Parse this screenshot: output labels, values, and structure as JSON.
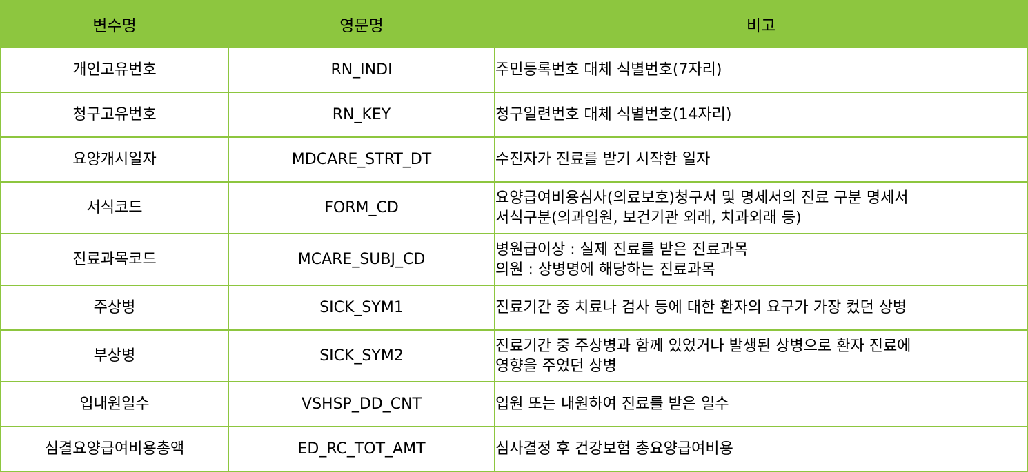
{
  "headers": {
    "name": "변수명",
    "english": "영문명",
    "note": "비고"
  },
  "rows": [
    {
      "name": "개인고유번호",
      "english": "RN_INDI",
      "note": [
        "주민등록번호 대체 식별번호(7자리)"
      ]
    },
    {
      "name": "청구고유번호",
      "english": "RN_KEY",
      "note": [
        "청구일련번호 대체 식별번호(14자리)"
      ]
    },
    {
      "name": "요양개시일자",
      "english": "MDCARE_STRT_DT",
      "note": [
        "수진자가 진료를 받기 시작한 일자"
      ]
    },
    {
      "name": "서식코드",
      "english": "FORM_CD",
      "note": [
        "요양급여비용심사(의료보호)청구서 및 명세서의 진료 구분 명세서",
        "서식구분(의과입원, 보건기관 외래, 치과외래 등)"
      ]
    },
    {
      "name": "진료과목코드",
      "english": "MCARE_SUBJ_CD",
      "note": [
        "병원급이상 : 실제 진료를 받은 진료과목",
        "의원 : 상병명에 해당하는 진료과목"
      ]
    },
    {
      "name": "주상병",
      "english": "SICK_SYM1",
      "note": [
        "진료기간 중 치료나 검사 등에 대한 환자의 요구가 가장 컸던 상병"
      ]
    },
    {
      "name": "부상병",
      "english": "SICK_SYM2",
      "note": [
        "진료기간 중 주상병과 함께 있었거나 발생된 상병으로 환자 진료에",
        "영향을 주었던 상병"
      ]
    },
    {
      "name": "입내원일수",
      "english": "VSHSP_DD_CNT",
      "note": [
        "입원 또는 내원하여 진료를 받은 일수"
      ]
    },
    {
      "name": "심결요양급여비용총액",
      "english": "ED_RC_TOT_AMT",
      "note": [
        "심사결정 후 건강보험 총요양급여비용"
      ]
    }
  ],
  "colors": {
    "header_bg": "#8dc63f",
    "border": "#8dc63f"
  }
}
